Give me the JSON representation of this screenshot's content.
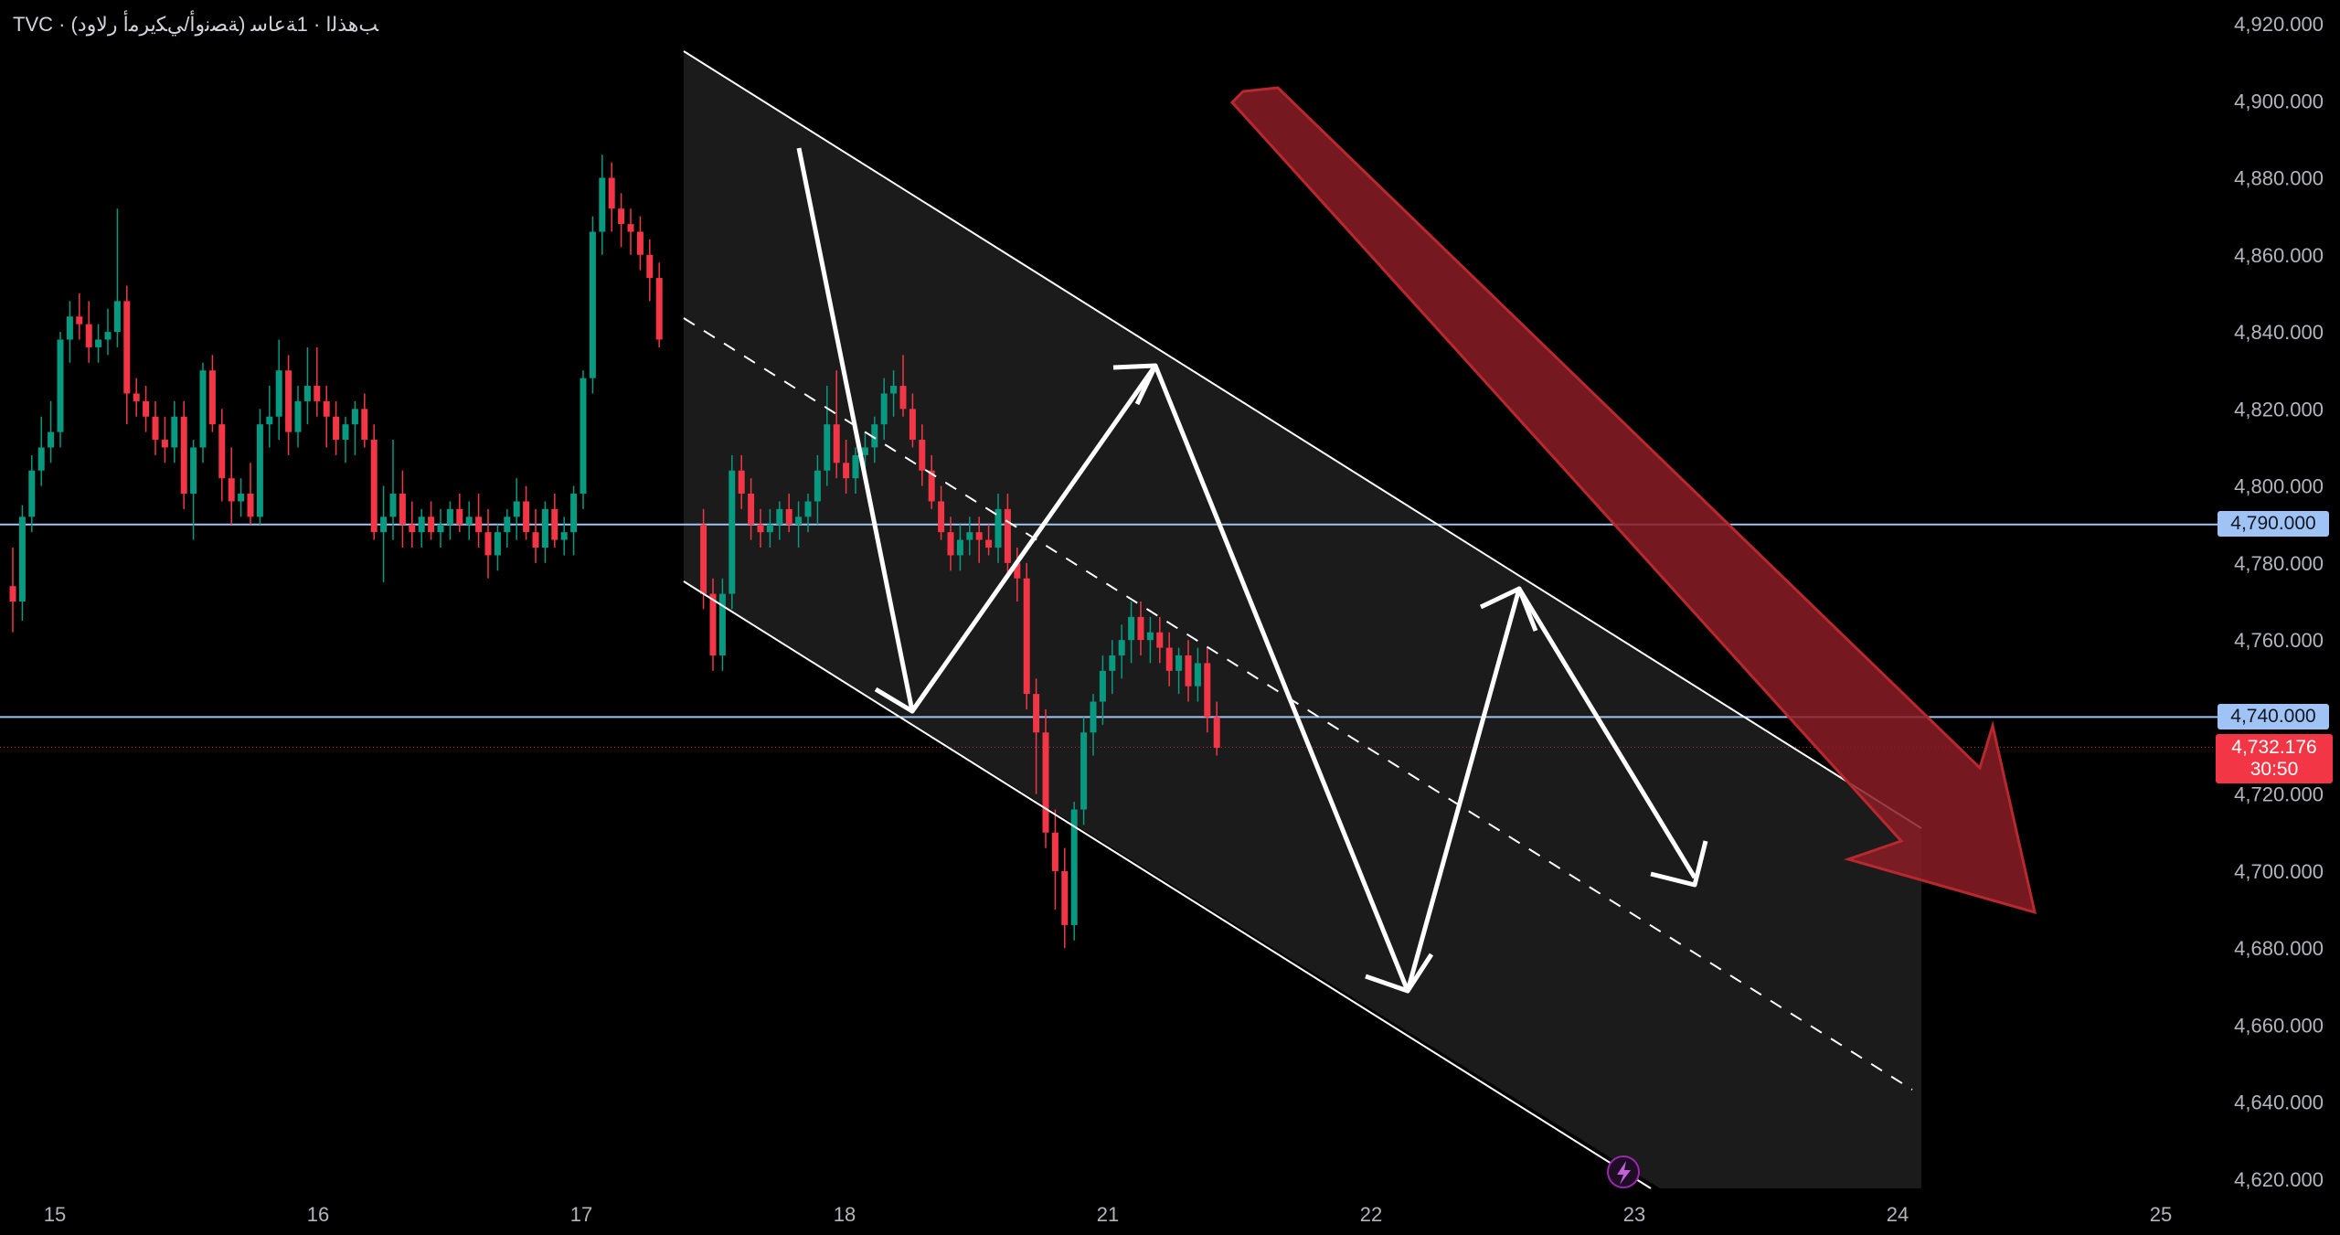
{
  "header": {
    "title": "TVC · (ﺔﺼﻧﻭﺃ/ﻲﻜﻳﺮﻣﺃ ﺭﻻﻭﺩ) ﺐﻫﺬﻟﺍ · 1ﺔﻋﺎﺳ"
  },
  "price_tags": {
    "level_upper": "4,790.000",
    "level_lower": "4,740.000",
    "last_price": "4,732.176",
    "countdown": "30:50"
  },
  "colors": {
    "background": "#000000",
    "up": "#089981",
    "down": "#f23645",
    "level_line": "#9fc3f5",
    "channel": "#ffffff",
    "arrow_big": "#8b1c24",
    "channel_fill": "#1c1c1c"
  },
  "icons": {
    "event_marker": "lightning-bolt-icon"
  },
  "chart_data": {
    "type": "candlestick",
    "title": "",
    "x_tick_labels": [
      "15",
      "16",
      "17",
      "18",
      "21",
      "22",
      "23",
      "24",
      "25"
    ],
    "y_tick_labels": [
      "4,920.000",
      "4,900.000",
      "4,880.000",
      "4,860.000",
      "4,840.000",
      "4,820.000",
      "4,800.000",
      "4,780.000",
      "4,760.000",
      "4,720.000",
      "4,700.000",
      "4,680.000",
      "4,660.000",
      "4,640.000",
      "4,620.000"
    ],
    "ylim": [
      4616,
      4922
    ],
    "horizontal_levels": [
      4790,
      4740
    ],
    "last_price": 4732.176,
    "candles": [
      {
        "o": 4774,
        "h": 4784,
        "l": 4762,
        "c": 4770
      },
      {
        "o": 4770,
        "h": 4795,
        "l": 4765,
        "c": 4792
      },
      {
        "o": 4792,
        "h": 4808,
        "l": 4788,
        "c": 4804
      },
      {
        "o": 4804,
        "h": 4818,
        "l": 4800,
        "c": 4810
      },
      {
        "o": 4810,
        "h": 4822,
        "l": 4806,
        "c": 4814
      },
      {
        "o": 4814,
        "h": 4840,
        "l": 4810,
        "c": 4838
      },
      {
        "o": 4838,
        "h": 4848,
        "l": 4832,
        "c": 4844
      },
      {
        "o": 4844,
        "h": 4850,
        "l": 4838,
        "c": 4842
      },
      {
        "o": 4842,
        "h": 4848,
        "l": 4832,
        "c": 4836
      },
      {
        "o": 4836,
        "h": 4842,
        "l": 4832,
        "c": 4838
      },
      {
        "o": 4838,
        "h": 4846,
        "l": 4834,
        "c": 4840
      },
      {
        "o": 4840,
        "h": 4872,
        "l": 4836,
        "c": 4848
      },
      {
        "o": 4848,
        "h": 4852,
        "l": 4816,
        "c": 4824
      },
      {
        "o": 4824,
        "h": 4828,
        "l": 4818,
        "c": 4822
      },
      {
        "o": 4822,
        "h": 4826,
        "l": 4814,
        "c": 4818
      },
      {
        "o": 4818,
        "h": 4822,
        "l": 4808,
        "c": 4812
      },
      {
        "o": 4812,
        "h": 4818,
        "l": 4806,
        "c": 4810
      },
      {
        "o": 4810,
        "h": 4822,
        "l": 4806,
        "c": 4818
      },
      {
        "o": 4818,
        "h": 4822,
        "l": 4794,
        "c": 4798
      },
      {
        "o": 4798,
        "h": 4812,
        "l": 4786,
        "c": 4810
      },
      {
        "o": 4810,
        "h": 4832,
        "l": 4806,
        "c": 4830
      },
      {
        "o": 4830,
        "h": 4834,
        "l": 4814,
        "c": 4816
      },
      {
        "o": 4816,
        "h": 4820,
        "l": 4796,
        "c": 4802
      },
      {
        "o": 4802,
        "h": 4810,
        "l": 4790,
        "c": 4796
      },
      {
        "o": 4796,
        "h": 4802,
        "l": 4792,
        "c": 4798
      },
      {
        "o": 4798,
        "h": 4806,
        "l": 4790,
        "c": 4792
      },
      {
        "o": 4792,
        "h": 4820,
        "l": 4790,
        "c": 4816
      },
      {
        "o": 4816,
        "h": 4826,
        "l": 4810,
        "c": 4818
      },
      {
        "o": 4818,
        "h": 4838,
        "l": 4812,
        "c": 4830
      },
      {
        "o": 4830,
        "h": 4834,
        "l": 4808,
        "c": 4814
      },
      {
        "o": 4814,
        "h": 4826,
        "l": 4810,
        "c": 4822
      },
      {
        "o": 4822,
        "h": 4836,
        "l": 4816,
        "c": 4826
      },
      {
        "o": 4826,
        "h": 4836,
        "l": 4818,
        "c": 4822
      },
      {
        "o": 4822,
        "h": 4826,
        "l": 4810,
        "c": 4818
      },
      {
        "o": 4818,
        "h": 4822,
        "l": 4808,
        "c": 4812
      },
      {
        "o": 4812,
        "h": 4818,
        "l": 4806,
        "c": 4816
      },
      {
        "o": 4816,
        "h": 4822,
        "l": 4808,
        "c": 4820
      },
      {
        "o": 4820,
        "h": 4824,
        "l": 4810,
        "c": 4812
      },
      {
        "o": 4812,
        "h": 4816,
        "l": 4786,
        "c": 4788
      },
      {
        "o": 4788,
        "h": 4800,
        "l": 4775,
        "c": 4792
      },
      {
        "o": 4792,
        "h": 4812,
        "l": 4786,
        "c": 4798
      },
      {
        "o": 4798,
        "h": 4804,
        "l": 4784,
        "c": 4790
      },
      {
        "o": 4790,
        "h": 4796,
        "l": 4784,
        "c": 4788
      },
      {
        "o": 4788,
        "h": 4794,
        "l": 4784,
        "c": 4792
      },
      {
        "o": 4792,
        "h": 4796,
        "l": 4786,
        "c": 4788
      },
      {
        "o": 4788,
        "h": 4794,
        "l": 4784,
        "c": 4790
      },
      {
        "o": 4790,
        "h": 4796,
        "l": 4786,
        "c": 4794
      },
      {
        "o": 4794,
        "h": 4798,
        "l": 4788,
        "c": 4790
      },
      {
        "o": 4790,
        "h": 4796,
        "l": 4786,
        "c": 4792
      },
      {
        "o": 4792,
        "h": 4798,
        "l": 4784,
        "c": 4788
      },
      {
        "o": 4788,
        "h": 4794,
        "l": 4776,
        "c": 4782
      },
      {
        "o": 4782,
        "h": 4790,
        "l": 4778,
        "c": 4788
      },
      {
        "o": 4788,
        "h": 4794,
        "l": 4784,
        "c": 4792
      },
      {
        "o": 4792,
        "h": 4802,
        "l": 4786,
        "c": 4796
      },
      {
        "o": 4796,
        "h": 4800,
        "l": 4786,
        "c": 4788
      },
      {
        "o": 4788,
        "h": 4794,
        "l": 4780,
        "c": 4784
      },
      {
        "o": 4784,
        "h": 4796,
        "l": 4780,
        "c": 4794
      },
      {
        "o": 4794,
        "h": 4798,
        "l": 4784,
        "c": 4786
      },
      {
        "o": 4786,
        "h": 4792,
        "l": 4782,
        "c": 4788
      },
      {
        "o": 4788,
        "h": 4800,
        "l": 4782,
        "c": 4798
      },
      {
        "o": 4798,
        "h": 4830,
        "l": 4794,
        "c": 4828
      },
      {
        "o": 4828,
        "h": 4870,
        "l": 4824,
        "c": 4866
      },
      {
        "o": 4866,
        "h": 4886,
        "l": 4860,
        "c": 4880
      },
      {
        "o": 4880,
        "h": 4884,
        "l": 4866,
        "c": 4872
      },
      {
        "o": 4872,
        "h": 4876,
        "l": 4862,
        "c": 4868
      },
      {
        "o": 4868,
        "h": 4872,
        "l": 4860,
        "c": 4866
      },
      {
        "o": 4866,
        "h": 4870,
        "l": 4856,
        "c": 4860
      },
      {
        "o": 4860,
        "h": 4864,
        "l": 4848,
        "c": 4854
      },
      {
        "o": 4854,
        "h": 4858,
        "l": 4836,
        "c": 4838
      },
      {
        "o": 4790,
        "h": 4794,
        "l": 4768,
        "c": 4772
      },
      {
        "o": 4772,
        "h": 4776,
        "l": 4752,
        "c": 4756
      },
      {
        "o": 4756,
        "h": 4776,
        "l": 4752,
        "c": 4772
      },
      {
        "o": 4772,
        "h": 4808,
        "l": 4768,
        "c": 4804
      },
      {
        "o": 4804,
        "h": 4808,
        "l": 4794,
        "c": 4798
      },
      {
        "o": 4798,
        "h": 4802,
        "l": 4786,
        "c": 4790
      },
      {
        "o": 4790,
        "h": 4794,
        "l": 4784,
        "c": 4788
      },
      {
        "o": 4788,
        "h": 4794,
        "l": 4784,
        "c": 4790
      },
      {
        "o": 4790,
        "h": 4796,
        "l": 4786,
        "c": 4794
      },
      {
        "o": 4794,
        "h": 4798,
        "l": 4788,
        "c": 4790
      },
      {
        "o": 4790,
        "h": 4796,
        "l": 4784,
        "c": 4792
      },
      {
        "o": 4792,
        "h": 4798,
        "l": 4788,
        "c": 4796
      },
      {
        "o": 4796,
        "h": 4808,
        "l": 4790,
        "c": 4804
      },
      {
        "o": 4804,
        "h": 4826,
        "l": 4800,
        "c": 4816
      },
      {
        "o": 4816,
        "h": 4830,
        "l": 4802,
        "c": 4806
      },
      {
        "o": 4806,
        "h": 4812,
        "l": 4798,
        "c": 4802
      },
      {
        "o": 4802,
        "h": 4810,
        "l": 4798,
        "c": 4808
      },
      {
        "o": 4808,
        "h": 4814,
        "l": 4802,
        "c": 4810
      },
      {
        "o": 4810,
        "h": 4818,
        "l": 4806,
        "c": 4816
      },
      {
        "o": 4816,
        "h": 4828,
        "l": 4812,
        "c": 4824
      },
      {
        "o": 4824,
        "h": 4830,
        "l": 4818,
        "c": 4826
      },
      {
        "o": 4826,
        "h": 4834,
        "l": 4818,
        "c": 4820
      },
      {
        "o": 4820,
        "h": 4824,
        "l": 4810,
        "c": 4812
      },
      {
        "o": 4812,
        "h": 4816,
        "l": 4800,
        "c": 4804
      },
      {
        "o": 4804,
        "h": 4808,
        "l": 4794,
        "c": 4796
      },
      {
        "o": 4796,
        "h": 4800,
        "l": 4786,
        "c": 4788
      },
      {
        "o": 4788,
        "h": 4792,
        "l": 4778,
        "c": 4782
      },
      {
        "o": 4782,
        "h": 4790,
        "l": 4778,
        "c": 4786
      },
      {
        "o": 4786,
        "h": 4792,
        "l": 4782,
        "c": 4788
      },
      {
        "o": 4788,
        "h": 4792,
        "l": 4780,
        "c": 4786
      },
      {
        "o": 4786,
        "h": 4790,
        "l": 4782,
        "c": 4784
      },
      {
        "o": 4784,
        "h": 4798,
        "l": 4780,
        "c": 4794
      },
      {
        "o": 4794,
        "h": 4798,
        "l": 4776,
        "c": 4780
      },
      {
        "o": 4780,
        "h": 4784,
        "l": 4770,
        "c": 4776
      },
      {
        "o": 4776,
        "h": 4780,
        "l": 4742,
        "c": 4746
      },
      {
        "o": 4746,
        "h": 4750,
        "l": 4720,
        "c": 4736
      },
      {
        "o": 4736,
        "h": 4742,
        "l": 4706,
        "c": 4710
      },
      {
        "o": 4710,
        "h": 4716,
        "l": 4690,
        "c": 4700
      },
      {
        "o": 4700,
        "h": 4706,
        "l": 4680,
        "c": 4686
      },
      {
        "o": 4686,
        "h": 4718,
        "l": 4682,
        "c": 4716
      },
      {
        "o": 4716,
        "h": 4740,
        "l": 4712,
        "c": 4736
      },
      {
        "o": 4736,
        "h": 4746,
        "l": 4730,
        "c": 4744
      },
      {
        "o": 4744,
        "h": 4756,
        "l": 4738,
        "c": 4752
      },
      {
        "o": 4752,
        "h": 4760,
        "l": 4746,
        "c": 4756
      },
      {
        "o": 4756,
        "h": 4764,
        "l": 4750,
        "c": 4760
      },
      {
        "o": 4760,
        "h": 4770,
        "l": 4754,
        "c": 4766
      },
      {
        "o": 4766,
        "h": 4770,
        "l": 4756,
        "c": 4760
      },
      {
        "o": 4760,
        "h": 4766,
        "l": 4754,
        "c": 4762
      },
      {
        "o": 4762,
        "h": 4766,
        "l": 4754,
        "c": 4758
      },
      {
        "o": 4758,
        "h": 4762,
        "l": 4748,
        "c": 4752
      },
      {
        "o": 4752,
        "h": 4758,
        "l": 4746,
        "c": 4756
      },
      {
        "o": 4756,
        "h": 4760,
        "l": 4744,
        "c": 4748
      },
      {
        "o": 4748,
        "h": 4758,
        "l": 4744,
        "c": 4754
      },
      {
        "o": 4754,
        "h": 4758,
        "l": 4736,
        "c": 4740
      },
      {
        "o": 4740,
        "h": 4744,
        "l": 4730,
        "c": 4732
      }
    ]
  }
}
